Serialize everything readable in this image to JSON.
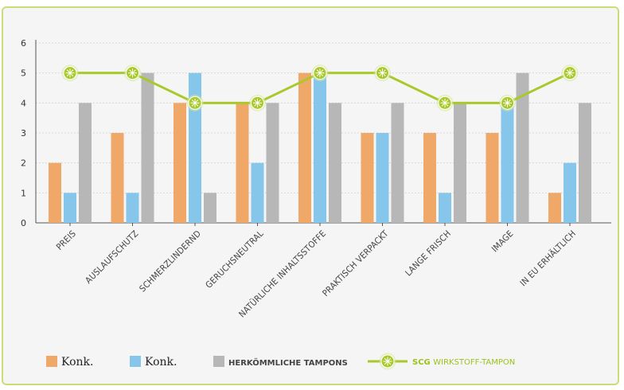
{
  "chart_data": {
    "type": "bar",
    "categories": [
      "PREIS",
      "AUSLAUFSCHUTZ",
      "SCHMERZLINDERND",
      "GERUCHSNEUTRAL",
      "NATÜRLICHE INHALTSSTOFFE",
      "PRAKTISCH VERPACKT",
      "LANGE FRISCH",
      "IMAGE",
      "IN EU ERHÄLTLICH"
    ],
    "y_ticks": [
      "0",
      "1",
      "2",
      "3",
      "4",
      "5",
      "6"
    ],
    "ylim": [
      0,
      6
    ],
    "grid": true,
    "legend_position": "bottom",
    "series": [
      {
        "name": "Konk.",
        "kind": "bar",
        "color": "#f0a868",
        "values": [
          2,
          3,
          4,
          4,
          5,
          3,
          3,
          3,
          1
        ]
      },
      {
        "name": "Konk.",
        "kind": "bar",
        "color": "#85c6ea",
        "values": [
          1,
          1,
          5,
          2,
          5,
          3,
          1,
          4,
          2
        ]
      },
      {
        "name": "HERKÖMMLICHE TAMPONS",
        "kind": "bar",
        "color": "#b7b7b7",
        "values": [
          4,
          5,
          1,
          4,
          4,
          4,
          4,
          5,
          4
        ]
      },
      {
        "name_prefix": "SCG",
        "name": "WIRKSTOFF-TAMPON",
        "kind": "line",
        "color": "#a9c92b",
        "values": [
          5,
          5,
          4,
          4,
          5,
          5,
          4,
          4,
          5
        ]
      }
    ]
  }
}
